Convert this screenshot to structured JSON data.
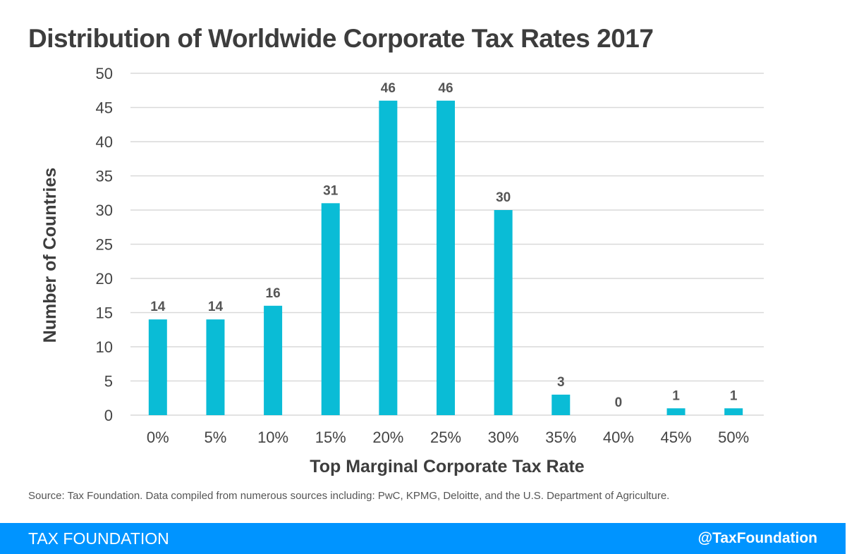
{
  "header": {
    "title": "Distribution of Worldwide Corporate Tax Rates 2017"
  },
  "chart_data": {
    "type": "bar",
    "title": "Distribution of Worldwide Corporate Tax Rates 2017",
    "xlabel": "Top Marginal Corporate Tax Rate",
    "ylabel": "Number of Countries",
    "categories": [
      "0%",
      "5%",
      "10%",
      "15%",
      "20%",
      "25%",
      "30%",
      "35%",
      "40%",
      "45%",
      "50%"
    ],
    "values": [
      14,
      14,
      16,
      31,
      46,
      46,
      30,
      3,
      0,
      1,
      1
    ],
    "data_labels": [
      "14",
      "14",
      "16",
      "31",
      "46",
      "46",
      "30",
      "3",
      "0",
      "1",
      "1"
    ],
    "ylim": [
      0,
      50
    ],
    "yticks": [
      0,
      5,
      10,
      15,
      20,
      25,
      30,
      35,
      40,
      45,
      50
    ],
    "ytick_labels": [
      "0",
      "5",
      "10",
      "15",
      "20",
      "25",
      "30",
      "35",
      "40",
      "45",
      "50"
    ],
    "grid": true,
    "legend": "none",
    "bar_color": "#0abcd6"
  },
  "source": "Source: Tax Foundation. Data compiled from numerous sources including: PwC, KPMG, Deloitte, and the U.S. Department of Agriculture.",
  "footer": {
    "brand": "TAX FOUNDATION",
    "handle": "@TaxFoundation",
    "color": "#0094ff"
  }
}
